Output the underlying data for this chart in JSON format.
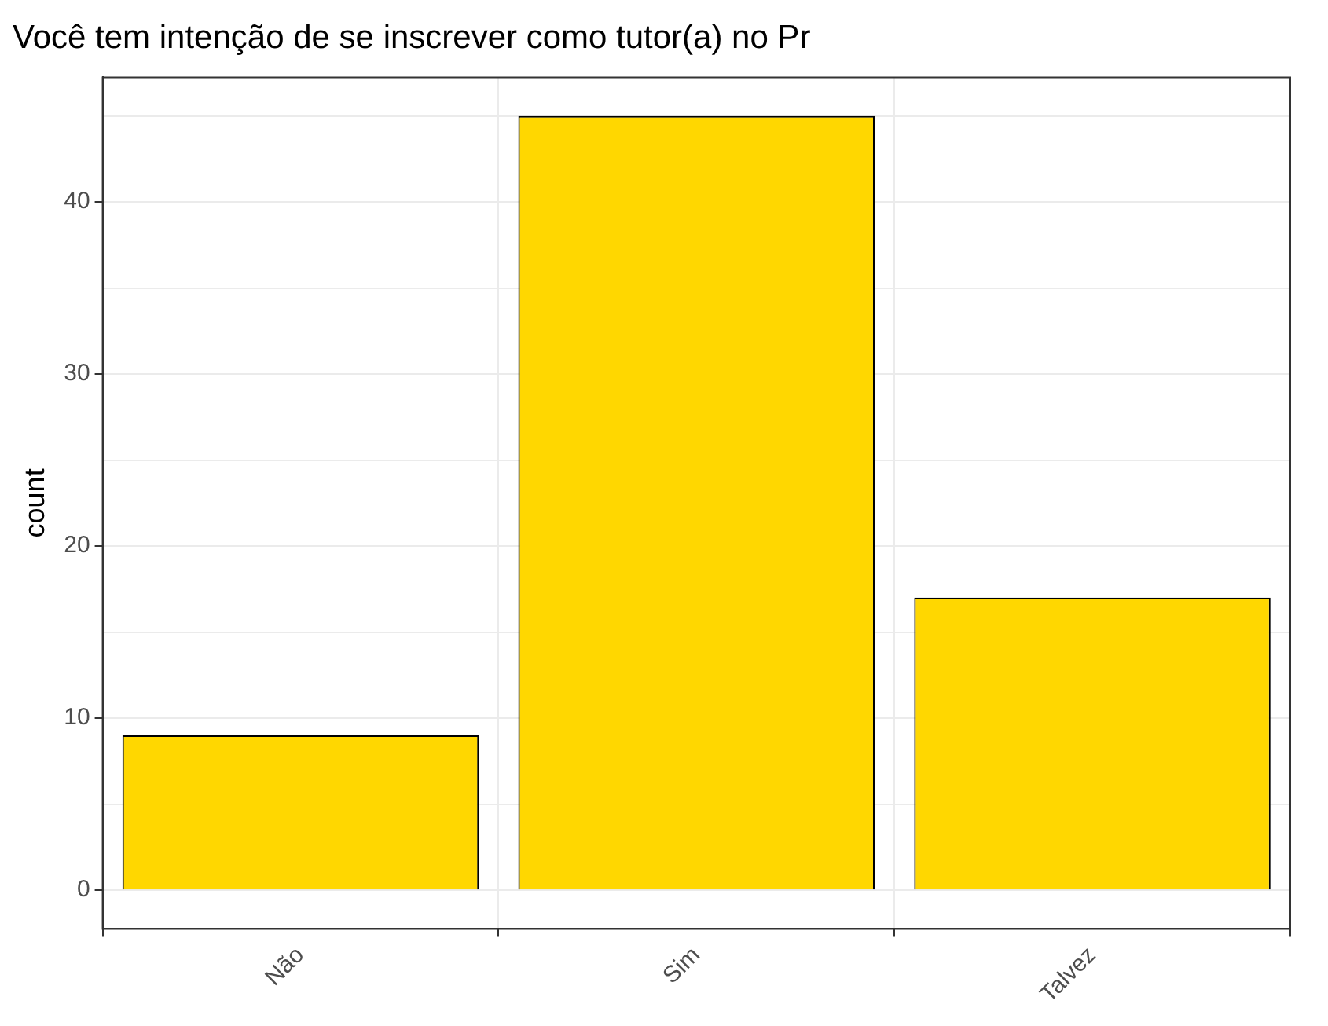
{
  "chart_data": {
    "type": "bar",
    "title": "Você tem intenção de se inscrever como tutor(a) no Pr",
    "ylabel": "count",
    "categories": [
      "Não",
      "Sim",
      "Talvez"
    ],
    "values": [
      9,
      45,
      17
    ],
    "color": "#ffd700",
    "ylim": [
      -2.25,
      47.25
    ],
    "yticks": [
      0,
      {
        "value": 5,
        "label": null
      },
      10,
      {
        "value": 15,
        "label": null
      },
      20,
      {
        "value": 25,
        "label": null
      },
      30,
      {
        "value": 35,
        "label": null
      },
      40,
      {
        "value": 45,
        "label": null
      }
    ],
    "grid": true
  }
}
